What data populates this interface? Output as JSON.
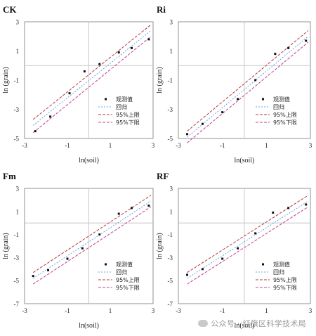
{
  "chart_data": [
    {
      "type": "scatter",
      "title": "CK",
      "xlabel": "ln(soil)",
      "ylabel": "ln (grain)",
      "xlim": [
        -3,
        3
      ],
      "ylim": [
        -5,
        3
      ],
      "x_ticks": [
        "-3",
        "-1",
        "1",
        "3"
      ],
      "y_ticks": [
        "3",
        "1",
        "-1",
        "-3",
        "-5"
      ],
      "legend_position": "bottom-right",
      "legend": [
        "观测值",
        "回归",
        "95%上限",
        "95%下限"
      ],
      "points": [
        {
          "x": -2.5,
          "y": -4.5
        },
        {
          "x": -1.8,
          "y": -3.5
        },
        {
          "x": -0.9,
          "y": -1.9
        },
        {
          "x": -0.2,
          "y": -0.4
        },
        {
          "x": 0.5,
          "y": 0.1
        },
        {
          "x": 1.4,
          "y": 0.9
        },
        {
          "x": 2.0,
          "y": 1.2
        },
        {
          "x": 2.8,
          "y": 1.8
        }
      ],
      "fit": {
        "x": [
          -2.6,
          2.9
        ],
        "y": [
          -4.1,
          2.4
        ]
      },
      "upper": {
        "x": [
          -2.6,
          2.9
        ],
        "y": [
          -3.7,
          2.8
        ]
      },
      "lower": {
        "x": [
          -2.6,
          2.9
        ],
        "y": [
          -4.6,
          2.0
        ]
      }
    },
    {
      "type": "scatter",
      "title": "Ri",
      "xlabel": "ln(soil)",
      "ylabel": "ln (grain)",
      "xlim": [
        -3,
        3
      ],
      "ylim": [
        -5,
        3
      ],
      "x_ticks": [
        "-3",
        "-1",
        "1",
        "3"
      ],
      "y_ticks": [
        "3",
        "1",
        "-1",
        "-3",
        "-5"
      ],
      "legend_position": "bottom-right",
      "legend": [
        "观测值",
        "回归",
        "95%上限",
        "95%下限"
      ],
      "points": [
        {
          "x": -2.6,
          "y": -4.7
        },
        {
          "x": -1.9,
          "y": -4.0
        },
        {
          "x": -1.0,
          "y": -3.2
        },
        {
          "x": -0.3,
          "y": -2.3
        },
        {
          "x": 0.5,
          "y": -1.0
        },
        {
          "x": 1.4,
          "y": 0.8
        },
        {
          "x": 2.0,
          "y": 1.2
        },
        {
          "x": 2.8,
          "y": 1.7
        }
      ],
      "fit": {
        "x": [
          -2.6,
          2.9
        ],
        "y": [
          -4.9,
          2.0
        ]
      },
      "upper": {
        "x": [
          -2.6,
          2.9
        ],
        "y": [
          -4.5,
          2.4
        ]
      },
      "lower": {
        "x": [
          -2.6,
          2.9
        ],
        "y": [
          -5.3,
          1.6
        ]
      }
    },
    {
      "type": "scatter",
      "title": "Fm",
      "xlabel": "ln(soil)",
      "ylabel": "ln (grain)",
      "xlim": [
        -3,
        3
      ],
      "ylim": [
        -7,
        3
      ],
      "x_ticks": [
        "-3",
        "-1",
        "1",
        "3"
      ],
      "y_ticks": [
        "3",
        "1",
        "-1",
        "-3",
        "-5",
        "-7"
      ],
      "legend_position": "bottom-right",
      "legend": [
        "观测值",
        "回归",
        "95%上限",
        "95%下限"
      ],
      "points": [
        {
          "x": -2.6,
          "y": -4.6
        },
        {
          "x": -1.9,
          "y": -4.1
        },
        {
          "x": -1.0,
          "y": -3.1
        },
        {
          "x": -0.3,
          "y": -2.2
        },
        {
          "x": 0.5,
          "y": -1.0
        },
        {
          "x": 1.4,
          "y": 0.8
        },
        {
          "x": 2.0,
          "y": 1.3
        },
        {
          "x": 2.8,
          "y": 1.5
        }
      ],
      "fit": {
        "x": [
          -2.6,
          2.9
        ],
        "y": [
          -4.8,
          1.9
        ]
      },
      "upper": {
        "x": [
          -2.6,
          2.9
        ],
        "y": [
          -4.3,
          2.4
        ]
      },
      "lower": {
        "x": [
          -2.6,
          2.9
        ],
        "y": [
          -5.3,
          1.4
        ]
      }
    },
    {
      "type": "scatter",
      "title": "RF",
      "xlabel": "ln(soil)",
      "ylabel": "ln (grain)",
      "xlim": [
        -3,
        3
      ],
      "ylim": [
        -7,
        3
      ],
      "x_ticks": [
        "-3",
        "-1",
        "1",
        "3"
      ],
      "y_ticks": [
        "3",
        "1",
        "-1",
        "-3",
        "-5",
        "-7"
      ],
      "legend_position": "bottom-right",
      "legend": [
        "观测值",
        "回归",
        "95%上限",
        "95%下限"
      ],
      "points": [
        {
          "x": -2.6,
          "y": -4.5
        },
        {
          "x": -1.9,
          "y": -4.0
        },
        {
          "x": -1.0,
          "y": -3.1
        },
        {
          "x": -0.3,
          "y": -2.2
        },
        {
          "x": 0.5,
          "y": -0.9
        },
        {
          "x": 1.3,
          "y": 0.9
        },
        {
          "x": 2.0,
          "y": 1.3
        },
        {
          "x": 2.8,
          "y": 1.6
        }
      ],
      "fit": {
        "x": [
          -2.6,
          2.9
        ],
        "y": [
          -4.8,
          1.9
        ]
      },
      "upper": {
        "x": [
          -2.6,
          2.9
        ],
        "y": [
          -4.3,
          2.4
        ]
      },
      "lower": {
        "x": [
          -2.6,
          2.9
        ],
        "y": [
          -5.3,
          1.4
        ]
      }
    }
  ],
  "colors": {
    "points": "#111111",
    "fit": "#5fa8e6",
    "upper": "#b33a3a",
    "lower": "#c0408a",
    "frame": "#777777",
    "zero_line": "#bbbbbb"
  },
  "watermark": "公众号 · 红旗区科学技术局"
}
